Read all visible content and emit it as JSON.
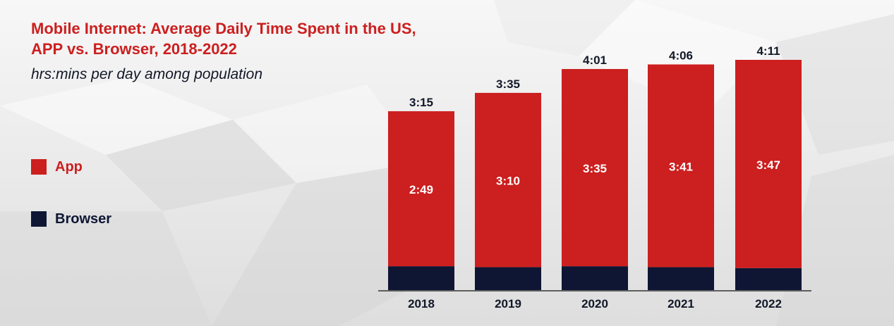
{
  "colors": {
    "app": "#cc1f1f",
    "browser": "#0e1634",
    "title": "#cc1f1f",
    "text": "#111827"
  },
  "chart_data": {
    "type": "bar",
    "stacked": true,
    "title": "Mobile Internet: Average Daily Time Spent in the US, APP vs. Browser, 2018-2022",
    "title_lines": [
      "Mobile Internet: Average Daily Time Spent in the US,",
      "APP vs. Browser, 2018-2022"
    ],
    "subtitle": "hrs:mins per day among population",
    "xlabel": "",
    "ylabel": "",
    "ylim_minutes": [
      0,
      251
    ],
    "categories": [
      "2018",
      "2019",
      "2020",
      "2021",
      "2022"
    ],
    "series": [
      {
        "name": "Browser",
        "values_minutes": [
          26,
          25,
          26,
          25,
          24
        ],
        "labels": []
      },
      {
        "name": "App",
        "values_minutes": [
          169,
          190,
          215,
          221,
          227
        ],
        "labels": [
          "2:49",
          "3:10",
          "3:35",
          "3:41",
          "3:47"
        ]
      }
    ],
    "totals_minutes": [
      195,
      215,
      241,
      246,
      251
    ],
    "total_labels": [
      "3:15",
      "3:35",
      "4:01",
      "4:06",
      "4:11"
    ],
    "legend": [
      "App",
      "Browser"
    ],
    "legend_position": "left"
  }
}
